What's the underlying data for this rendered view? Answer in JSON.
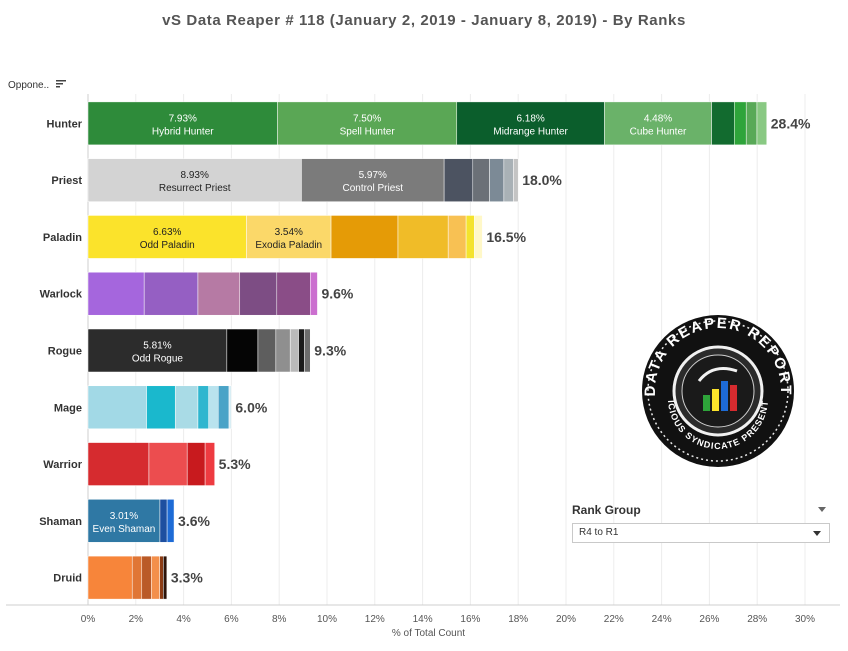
{
  "title": "vS Data Reaper #  118 (January 2, 2019 - January 8, 2019) - By Ranks",
  "sort_label": "Oppone..",
  "filter": {
    "label": "Rank Group",
    "value": "R4 to R1"
  },
  "logo": {
    "text_top": "DATA REAPER REPORT",
    "text_bottom": "VICIOUS SYNDICATE PRESENTS"
  },
  "chart_data": {
    "type": "bar",
    "orientation": "horizontal",
    "stacked": true,
    "xlabel": "% of Total Count",
    "ylabel": "",
    "xlim": [
      0,
      30
    ],
    "x_ticks": [
      "0%",
      "2%",
      "4%",
      "6%",
      "8%",
      "10%",
      "12%",
      "14%",
      "16%",
      "18%",
      "20%",
      "22%",
      "24%",
      "26%",
      "28%",
      "30%"
    ],
    "categories": [
      "Hunter",
      "Priest",
      "Paladin",
      "Warlock",
      "Rogue",
      "Mage",
      "Warrior",
      "Shaman",
      "Druid"
    ],
    "totals": [
      "28.4%",
      "18.0%",
      "16.5%",
      "9.6%",
      "9.3%",
      "6.0%",
      "5.3%",
      "3.6%",
      "3.3%"
    ],
    "bars": [
      {
        "class": "Hunter",
        "segments": [
          {
            "value": 7.93,
            "color": "#2e8b3a",
            "pct": "7.93%",
            "name": "Hybrid Hunter"
          },
          {
            "value": 7.5,
            "color": "#5aa755",
            "pct": "7.50%",
            "name": "Spell Hunter"
          },
          {
            "value": 6.18,
            "color": "#0b5e2c",
            "pct": "6.18%",
            "name": "Midrange Hunter"
          },
          {
            "value": 4.48,
            "color": "#6ab269",
            "pct": "4.48%",
            "name": "Cube Hunter"
          },
          {
            "value": 0.95,
            "color": "#126b2f"
          },
          {
            "value": 0.5,
            "color": "#2ea43a"
          },
          {
            "value": 0.45,
            "color": "#58a957"
          },
          {
            "value": 0.41,
            "color": "#89c983"
          }
        ]
      },
      {
        "class": "Priest",
        "segments": [
          {
            "value": 8.93,
            "color": "#d3d3d3",
            "pct": "8.93%",
            "name": "Resurrect Priest"
          },
          {
            "value": 5.97,
            "color": "#7b7b7b",
            "pct": "5.97%",
            "name": "Control Priest"
          },
          {
            "value": 1.2,
            "color": "#4c5361"
          },
          {
            "value": 0.7,
            "color": "#6b7077"
          },
          {
            "value": 0.6,
            "color": "#7c8a96"
          },
          {
            "value": 0.4,
            "color": "#a9b1b6"
          },
          {
            "value": 0.2,
            "color": "#c4c4c4"
          }
        ]
      },
      {
        "class": "Paladin",
        "segments": [
          {
            "value": 6.63,
            "color": "#fbe32b",
            "pct": "6.63%",
            "name": "Odd Paladin"
          },
          {
            "value": 3.54,
            "color": "#fbd869",
            "pct": "3.54%",
            "name": "Exodia Paladin"
          },
          {
            "value": 2.8,
            "color": "#e59b06"
          },
          {
            "value": 2.1,
            "color": "#f0bc28"
          },
          {
            "value": 0.75,
            "color": "#f8c153"
          },
          {
            "value": 0.35,
            "color": "#f4e32d"
          },
          {
            "value": 0.33,
            "color": "#fff8c8"
          }
        ]
      },
      {
        "class": "Warlock",
        "segments": [
          {
            "value": 2.35,
            "color": "#a566dd"
          },
          {
            "value": 2.25,
            "color": "#955fc3"
          },
          {
            "value": 1.75,
            "color": "#b67aa4"
          },
          {
            "value": 1.55,
            "color": "#7d4d84"
          },
          {
            "value": 1.4,
            "color": "#8a4d87"
          },
          {
            "value": 0.3,
            "color": "#cb6fcf"
          }
        ]
      },
      {
        "class": "Rogue",
        "segments": [
          {
            "value": 5.81,
            "color": "#2c2c2c",
            "pct": "5.81%",
            "name": "Odd Rogue"
          },
          {
            "value": 1.3,
            "color": "#050505"
          },
          {
            "value": 0.75,
            "color": "#5e5e5e"
          },
          {
            "value": 0.6,
            "color": "#8f8f8f"
          },
          {
            "value": 0.35,
            "color": "#b9b9b9"
          },
          {
            "value": 0.25,
            "color": "#1a1a1a"
          },
          {
            "value": 0.24,
            "color": "#6c6c6c"
          }
        ]
      },
      {
        "class": "Mage",
        "segments": [
          {
            "value": 2.45,
            "color": "#a2d9e6"
          },
          {
            "value": 1.2,
            "color": "#1ab8cd"
          },
          {
            "value": 0.95,
            "color": "#a9dbe6"
          },
          {
            "value": 0.45,
            "color": "#2fb6cf"
          },
          {
            "value": 0.4,
            "color": "#b9e3ee"
          },
          {
            "value": 0.45,
            "color": "#4aa3c7"
          },
          {
            "value": 0.1,
            "color": "#d9eef4"
          }
        ]
      },
      {
        "class": "Warrior",
        "segments": [
          {
            "value": 2.55,
            "color": "#d62b2f"
          },
          {
            "value": 1.6,
            "color": "#ec4d4f"
          },
          {
            "value": 0.75,
            "color": "#c81a1e"
          },
          {
            "value": 0.4,
            "color": "#ee3b41"
          }
        ]
      },
      {
        "class": "Shaman",
        "segments": [
          {
            "value": 3.01,
            "color": "#2f78a4",
            "pct": "3.01%",
            "name": "Even Shaman"
          },
          {
            "value": 0.3,
            "color": "#1d4fa0"
          },
          {
            "value": 0.29,
            "color": "#1d6bd6"
          }
        ]
      },
      {
        "class": "Druid",
        "segments": [
          {
            "value": 1.85,
            "color": "#f7853a"
          },
          {
            "value": 0.4,
            "color": "#e07635"
          },
          {
            "value": 0.4,
            "color": "#ba5a27"
          },
          {
            "value": 0.35,
            "color": "#f38f4a"
          },
          {
            "value": 0.15,
            "color": "#8b3b14"
          },
          {
            "value": 0.15,
            "color": "#2b1309"
          }
        ]
      }
    ]
  }
}
